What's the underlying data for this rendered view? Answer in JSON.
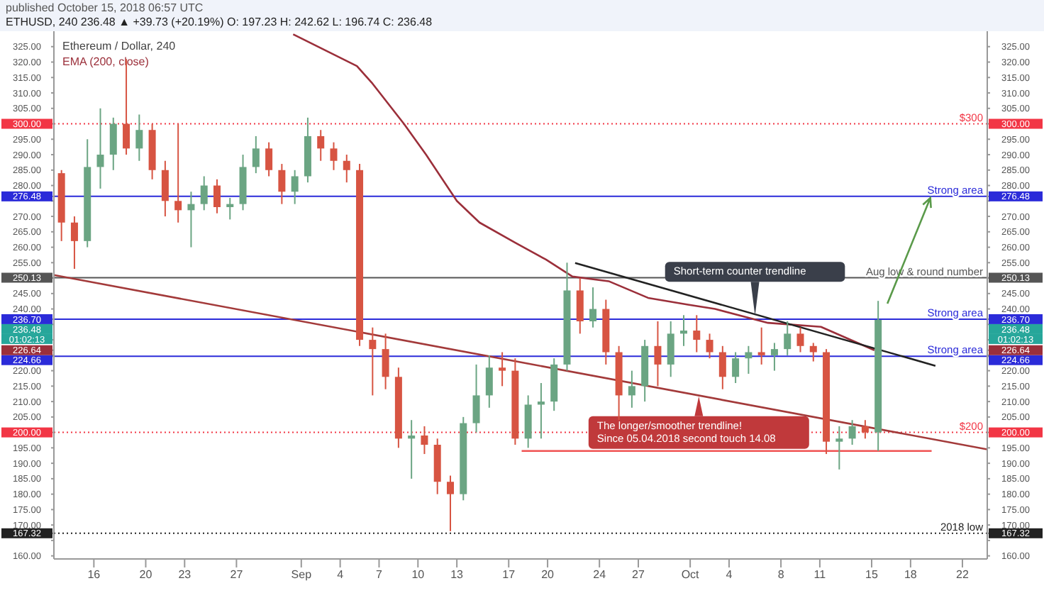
{
  "chart_data": {
    "type": "candlestick",
    "title": "Ethereum / Dollar, 240",
    "subtitle": "ETHUSD, 240 236.48 ▲ +39.73 (+20.19%) O: 197.23 H: 242.62 L: 196.74 C: 236.48",
    "x": [
      "2018-08-13T12:00",
      "2018-08-14T12:00",
      "2018-08-15T12:00",
      "2018-08-16T12:00",
      "2018-08-17T12:00",
      "2018-08-18T12:00",
      "2018-08-19T12:00",
      "2018-08-20T12:00",
      "2018-08-21T12:00",
      "2018-08-22T12:00",
      "2018-08-23T12:00",
      "2018-08-24T12:00",
      "2018-08-25T12:00",
      "2018-08-26T12:00",
      "2018-08-27T12:00",
      "2018-08-28T12:00",
      "2018-08-29T12:00",
      "2018-08-30T12:00",
      "2018-08-31T12:00",
      "2018-09-01T12:00",
      "2018-09-02T12:00",
      "2018-09-03T12:00",
      "2018-09-04T12:00",
      "2018-09-05T12:00",
      "2018-09-06T12:00",
      "2018-09-07T12:00",
      "2018-09-08T12:00",
      "2018-09-09T12:00",
      "2018-09-10T12:00",
      "2018-09-11T12:00",
      "2018-09-12T12:00",
      "2018-09-13T12:00",
      "2018-09-14T12:00",
      "2018-09-15T12:00",
      "2018-09-16T12:00",
      "2018-09-17T12:00",
      "2018-09-18T12:00",
      "2018-09-19T12:00",
      "2018-09-20T12:00",
      "2018-09-21T12:00",
      "2018-09-22T12:00",
      "2018-09-23T12:00",
      "2018-09-24T12:00",
      "2018-09-25T12:00",
      "2018-09-26T12:00",
      "2018-09-27T12:00",
      "2018-09-28T12:00",
      "2018-09-29T12:00",
      "2018-09-30T12:00",
      "2018-10-01T12:00",
      "2018-10-02T12:00",
      "2018-10-03T12:00",
      "2018-10-04T12:00",
      "2018-10-05T12:00",
      "2018-10-06T12:00",
      "2018-10-07T12:00",
      "2018-10-08T12:00",
      "2018-10-09T12:00",
      "2018-10-10T12:00",
      "2018-10-11T12:00",
      "2018-10-12T12:00",
      "2018-10-13T12:00",
      "2018-10-14T12:00",
      "2018-10-15T12:00"
    ],
    "ohlc": [
      [
        284,
        285,
        262,
        268
      ],
      [
        268,
        270,
        253,
        262
      ],
      [
        262,
        295,
        260,
        286
      ],
      [
        286,
        305,
        279,
        290
      ],
      [
        290,
        302,
        285,
        300
      ],
      [
        300,
        321,
        290,
        292
      ],
      [
        292,
        303,
        288,
        298
      ],
      [
        298,
        300,
        282,
        285
      ],
      [
        285,
        288,
        270,
        275
      ],
      [
        275,
        300,
        268,
        272
      ],
      [
        272,
        278,
        260,
        274
      ],
      [
        274,
        283,
        272,
        280
      ],
      [
        280,
        282,
        271,
        273
      ],
      [
        273,
        276,
        269,
        274
      ],
      [
        274,
        290,
        272,
        286
      ],
      [
        286,
        296,
        284,
        292
      ],
      [
        292,
        294,
        283,
        285
      ],
      [
        285,
        287,
        274,
        278
      ],
      [
        278,
        285,
        274,
        283
      ],
      [
        283,
        302,
        281,
        296
      ],
      [
        296,
        298,
        288,
        292
      ],
      [
        292,
        294,
        285,
        288
      ],
      [
        288,
        290,
        281,
        285
      ],
      [
        285,
        287,
        228,
        230
      ],
      [
        230,
        234,
        212,
        227
      ],
      [
        227,
        232,
        214,
        218
      ],
      [
        218,
        221,
        195,
        198
      ],
      [
        198,
        204,
        185,
        199
      ],
      [
        199,
        202,
        193,
        196
      ],
      [
        196,
        198,
        180,
        184
      ],
      [
        184,
        186,
        168,
        180
      ],
      [
        180,
        205,
        178,
        203
      ],
      [
        203,
        222,
        200,
        212
      ],
      [
        212,
        225,
        208,
        221
      ],
      [
        221,
        226,
        215,
        220
      ],
      [
        220,
        224,
        196,
        198
      ],
      [
        198,
        212,
        195,
        209
      ],
      [
        209,
        216,
        198,
        210
      ],
      [
        210,
        224,
        207,
        222
      ],
      [
        222,
        255,
        220,
        246
      ],
      [
        246,
        250,
        232,
        236
      ],
      [
        236,
        247,
        234,
        240
      ],
      [
        240,
        243,
        222,
        226
      ],
      [
        226,
        228,
        204,
        212
      ],
      [
        212,
        220,
        208,
        215
      ],
      [
        215,
        230,
        210,
        228
      ],
      [
        228,
        236,
        215,
        222
      ],
      [
        222,
        236,
        218,
        232
      ],
      [
        232,
        238,
        228,
        233
      ],
      [
        233,
        238,
        226,
        230
      ],
      [
        230,
        232,
        224,
        226
      ],
      [
        226,
        228,
        214,
        218
      ],
      [
        218,
        226,
        216,
        224
      ],
      [
        224,
        228,
        219,
        226
      ],
      [
        226,
        234,
        222,
        225
      ],
      [
        225,
        229,
        220,
        227
      ],
      [
        227,
        236,
        225,
        232
      ],
      [
        232,
        234,
        226,
        228
      ],
      [
        228,
        229,
        223,
        226
      ],
      [
        226,
        227,
        193,
        197
      ],
      [
        197,
        202,
        188,
        198
      ],
      [
        198,
        204,
        196,
        202
      ],
      [
        202,
        204,
        198,
        200
      ],
      [
        200,
        242.62,
        194,
        236.48
      ]
    ],
    "colors": [
      "#d75442",
      "#d75442",
      "#6ba583",
      "#6ba583",
      "#6ba583",
      "#d75442",
      "#6ba583",
      "#d75442",
      "#d75442",
      "#d75442",
      "#6ba583",
      "#6ba583",
      "#d75442",
      "#6ba583",
      "#6ba583",
      "#6ba583",
      "#d75442",
      "#d75442",
      "#6ba583",
      "#6ba583",
      "#d75442",
      "#d75442",
      "#d75442",
      "#d75442",
      "#d75442",
      "#d75442",
      "#d75442",
      "#6ba583",
      "#d75442",
      "#d75442",
      "#d75442",
      "#6ba583",
      "#6ba583",
      "#6ba583",
      "#d75442",
      "#d75442",
      "#6ba583",
      "#6ba583",
      "#6ba583",
      "#6ba583",
      "#d75442",
      "#6ba583",
      "#d75442",
      "#d75442",
      "#6ba583",
      "#6ba583",
      "#d75442",
      "#6ba583",
      "#6ba583",
      "#d75442",
      "#d75442",
      "#d75442",
      "#6ba583",
      "#6ba583",
      "#d75442",
      "#6ba583",
      "#6ba583",
      "#d75442",
      "#d75442",
      "#d75442",
      "#6ba583",
      "#6ba583",
      "#d75442",
      "#6ba583"
    ],
    "series": [
      {
        "type": "line",
        "name": "EMA (200, close)",
        "color": "#9b2f3a",
        "x": [
          "2018-08-31T09:00",
          "2018-09-05T07:00",
          "2018-09-06T12:00",
          "2018-09-08T22:00",
          "2018-09-10T15:00",
          "2018-09-13T00:00",
          "2018-09-14T18:00",
          "2018-09-17T12:00",
          "2018-09-19T21:00",
          "2018-09-21T22:00",
          "2018-09-24T17:00",
          "2018-09-27T18:00",
          "2018-09-30T20:00",
          "2018-10-02T22:00",
          "2018-10-07T00:00",
          "2018-10-11T02:00",
          "2018-10-15T05:00"
        ],
        "values": [
          329,
          318.7,
          313,
          300,
          290,
          275,
          268,
          261.5,
          256,
          250.5,
          249,
          243.6,
          241.4,
          240,
          235.5,
          234.2,
          226.64
        ]
      },
      {
        "type": "line",
        "color": "#222222",
        "x": [
          "2018-09-22T03:00",
          "2018-10-19T22:00"
        ],
        "values": [
          254.9,
          221.6
        ]
      },
      {
        "type": "line",
        "color": "#a33a3a",
        "x": [
          "2018-08-12T22:00",
          "2018-10-23T22:00"
        ],
        "values": [
          251,
          194.5
        ]
      },
      {
        "type": "line",
        "color": "#f05252",
        "x": [
          "2018-09-18T00:00",
          "2018-10-19T15:00"
        ],
        "values": [
          194,
          194
        ]
      }
    ],
    "xlim": [
      "2018-08-12T22:00",
      "2018-10-23T22:00"
    ],
    "xticks": [
      {
        "value": "2018-08-16",
        "label": "16"
      },
      {
        "value": "2018-08-20",
        "label": "20"
      },
      {
        "value": "2018-08-23",
        "label": "23"
      },
      {
        "value": "2018-08-27",
        "label": "27"
      },
      {
        "value": "2018-09-01",
        "label": "Sep"
      },
      {
        "value": "2018-09-04",
        "label": "4"
      },
      {
        "value": "2018-09-07",
        "label": "7"
      },
      {
        "value": "2018-09-10",
        "label": "10"
      },
      {
        "value": "2018-09-13",
        "label": "13"
      },
      {
        "value": "2018-09-17",
        "label": "17"
      },
      {
        "value": "2018-09-20",
        "label": "20"
      },
      {
        "value": "2018-09-24",
        "label": "24"
      },
      {
        "value": "2018-09-27",
        "label": "27"
      },
      {
        "value": "2018-10-01",
        "label": "Oct"
      },
      {
        "value": "2018-10-04",
        "label": "4"
      },
      {
        "value": "2018-10-08",
        "label": "8"
      },
      {
        "value": "2018-10-11",
        "label": "11"
      },
      {
        "value": "2018-10-15",
        "label": "15"
      },
      {
        "value": "2018-10-18",
        "label": "18"
      },
      {
        "value": "2018-10-22",
        "label": "22"
      }
    ],
    "ylim": [
      159,
      330
    ],
    "yticks": [
      {
        "value": 160,
        "label": "160.00"
      },
      {
        "value": 165,
        "label": null
      },
      {
        "value": 167.32,
        "label": "167.32"
      },
      {
        "value": 170,
        "label": "170.00"
      },
      {
        "value": 175,
        "label": "175.00"
      },
      {
        "value": 180,
        "label": "180.00"
      },
      {
        "value": 185,
        "label": "185.00"
      },
      {
        "value": 190,
        "label": "190.00"
      },
      {
        "value": 195,
        "label": "195.00"
      },
      {
        "value": 200,
        "label": "200.00"
      },
      {
        "value": 205,
        "label": "205.00"
      },
      {
        "value": 210,
        "label": "210.00"
      },
      {
        "value": 215,
        "label": "215.00"
      },
      {
        "value": 220,
        "label": "220.00"
      },
      {
        "value": 224.66,
        "label": "224.66"
      },
      {
        "value": 225,
        "label": null
      },
      {
        "value": 226.64,
        "label": "226.64"
      },
      {
        "value": 230,
        "label": null
      },
      {
        "value": 235,
        "label": null
      },
      {
        "value": 236.7,
        "label": "236.70"
      },
      {
        "value": 240,
        "label": "240.00"
      },
      {
        "value": 245,
        "label": "245.00"
      },
      {
        "value": 250,
        "label": null
      },
      {
        "value": 250.13,
        "label": "250.13"
      },
      {
        "value": 255,
        "label": "255.00"
      },
      {
        "value": 260,
        "label": "260.00"
      },
      {
        "value": 265,
        "label": "265.00"
      },
      {
        "value": 270,
        "label": "270.00"
      },
      {
        "value": 275,
        "label": null
      },
      {
        "value": 276.48,
        "label": "276.48"
      },
      {
        "value": 280,
        "label": "280.00"
      },
      {
        "value": 285,
        "label": "285.00"
      },
      {
        "value": 290,
        "label": "290.00"
      },
      {
        "value": 295,
        "label": "295.00"
      },
      {
        "value": 300,
        "label": "300.00"
      },
      {
        "value": 305,
        "label": "305.00"
      },
      {
        "value": 310,
        "label": "310.00"
      },
      {
        "value": 315,
        "label": "315.00"
      },
      {
        "value": 320,
        "label": "320.00"
      },
      {
        "value": 325,
        "label": "325.00"
      }
    ],
    "y2lim": [
      159,
      330
    ],
    "y2ticks": [
      {
        "value": 160,
        "label": "160.00"
      },
      {
        "value": 165,
        "label": null
      },
      {
        "value": 167.32,
        "label": "167.32"
      },
      {
        "value": 170,
        "label": "170.00"
      },
      {
        "value": 175,
        "label": "175.00"
      },
      {
        "value": 180,
        "label": "180.00"
      },
      {
        "value": 185,
        "label": "185.00"
      },
      {
        "value": 190,
        "label": "190.00"
      },
      {
        "value": 195,
        "label": "195.00"
      },
      {
        "value": 200,
        "label": "200.00"
      },
      {
        "value": 205,
        "label": "205.00"
      },
      {
        "value": 210,
        "label": "210.00"
      },
      {
        "value": 215,
        "label": "215.00"
      },
      {
        "value": 220,
        "label": "220.00"
      },
      {
        "value": 224.66,
        "label": "224.66"
      },
      {
        "value": 225,
        "label": null
      },
      {
        "value": 226.64,
        "label": "226.64"
      },
      {
        "value": 230,
        "label": null
      },
      {
        "value": 235,
        "label": null
      },
      {
        "value": 236.7,
        "label": "236.70"
      },
      {
        "value": 240,
        "label": "240.00"
      },
      {
        "value": 245,
        "label": "245.00"
      },
      {
        "value": 250,
        "label": null
      },
      {
        "value": 250.13,
        "label": "250.13"
      },
      {
        "value": 255,
        "label": "255.00"
      },
      {
        "value": 260,
        "label": "260.00"
      },
      {
        "value": 265,
        "label": "265.00"
      },
      {
        "value": 270,
        "label": "270.00"
      },
      {
        "value": 275,
        "label": null
      },
      {
        "value": 276.48,
        "label": "276.48"
      },
      {
        "value": 280,
        "label": "280.00"
      },
      {
        "value": 285,
        "label": "285.00"
      },
      {
        "value": 290,
        "label": "290.00"
      },
      {
        "value": 295,
        "label": "295.00"
      },
      {
        "value": 300,
        "label": "300.00"
      },
      {
        "value": 305,
        "label": "305.00"
      },
      {
        "value": 310,
        "label": "310.00"
      },
      {
        "value": 315,
        "label": "315.00"
      },
      {
        "value": 320,
        "label": "320.00"
      },
      {
        "value": 325,
        "label": "325.00"
      }
    ],
    "ref_lines": [
      {
        "axis": "y",
        "value": 300,
        "label": "$300",
        "color": "#f23645",
        "line_style": "dotted"
      },
      {
        "axis": "y",
        "value": 276.48,
        "label": "Strong area",
        "color": "#2b2bd9"
      },
      {
        "axis": "y",
        "value": 250.13,
        "label": "Aug low & round number",
        "color": "#555555"
      },
      {
        "axis": "y",
        "value": 236.7,
        "label": "Strong area",
        "color": "#2b2bd9"
      },
      {
        "axis": "y",
        "value": 224.66,
        "label": "Strong area",
        "color": "#2b2bd9"
      },
      {
        "axis": "y",
        "value": 200,
        "label": "$200",
        "color": "#f23645",
        "line_style": "dotted"
      },
      {
        "axis": "y",
        "value": 167.32,
        "label": "2018 low",
        "color": "#222222",
        "line_style": "dotted"
      }
    ],
    "annotations": [
      "published October 15, 2018 06:57 UTC",
      {
        "text": "Short-term counter trendline",
        "x": "2018-10-06T00:00",
        "y": 237.8
      },
      {
        "text": "The longer/smoother trendline!\nSince 05.04.2018 second touch 14.08",
        "x": "2018-10-01T16:00",
        "y": 211.7
      },
      "236.48",
      "01:02:13"
    ],
    "legend": "top left"
  }
}
